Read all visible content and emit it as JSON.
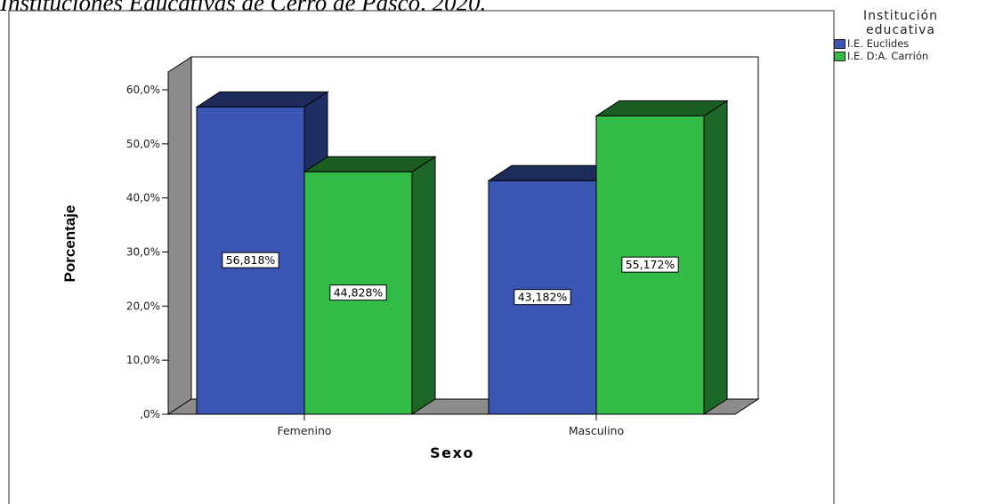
{
  "caption": "Instituciones Educativas de Cerro de Pasco, 2020.",
  "legend": {
    "title": "Institución\neducativa",
    "entries": [
      {
        "label": "I.E. Euclides",
        "color": "#3a55b4"
      },
      {
        "label": "I.E. D:A. Carrión",
        "color": "#33bb48"
      }
    ]
  },
  "chart_data": {
    "type": "bar",
    "title": "",
    "xlabel": "Sexo",
    "ylabel": "Porcentaje",
    "categories": [
      "Femenino",
      "Masculino"
    ],
    "yticks": [
      ",0%",
      "10,0%",
      "20,0%",
      "30,0%",
      "40,0%",
      "50,0%",
      "60,0%"
    ],
    "ylim": [
      0,
      60
    ],
    "grid": false,
    "legend_position": "right",
    "series": [
      {
        "name": "I.E. Euclides",
        "values": [
          56.818,
          43.182
        ],
        "labels": [
          "56,818%",
          "43,182%"
        ],
        "color": "#3a55b4"
      },
      {
        "name": "I.E. D:A. Carrión",
        "values": [
          44.828,
          55.172
        ],
        "labels": [
          "44,828%",
          "55,172%"
        ],
        "color": "#33bb48"
      }
    ]
  }
}
